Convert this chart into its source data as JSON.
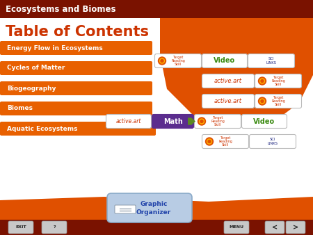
{
  "title_bar_color": "#7A1200",
  "title_bar_text": "Ecosystems and Biomes",
  "title_bar_text_color": "#FFFFFF",
  "main_bg_color": "#E05000",
  "toc_title": "Table of Contents",
  "toc_title_color": "#CC3300",
  "sections": [
    "Energy Flow in Ecosystems",
    "Cycles of Matter",
    "Biogeography",
    "Biomes",
    "Aquatic Ecosystems"
  ],
  "section_bar_color": "#E86000",
  "section_text_color": "#FFFFFF",
  "bottom_bar_color": "#7A1200",
  "white_bg_color": "#FFFFFF",
  "curve_orange": "#E05000"
}
